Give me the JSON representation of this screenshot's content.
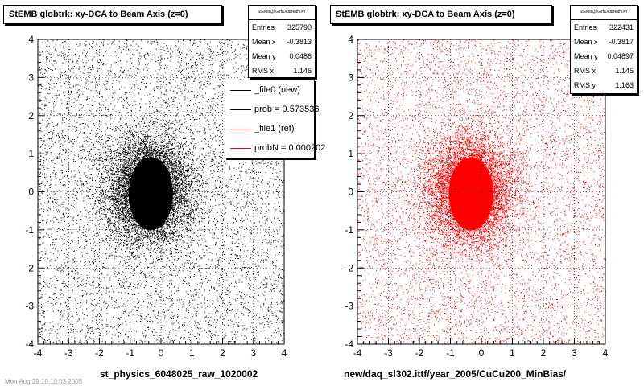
{
  "chart_data": [
    {
      "type": "scatter",
      "title": "StEMB globtrk: xy-DCA to Beam Axis (z=0)",
      "xlabel": "st_physics_6048025_raw_1020002",
      "ylabel": "",
      "xlim": [
        -4,
        4
      ],
      "ylim": [
        -4,
        4
      ],
      "x_ticks": [
        "-4",
        "-3",
        "-2",
        "-1",
        "0",
        "1",
        "2",
        "3",
        "4"
      ],
      "y_ticks": [
        "-4",
        "-3",
        "-2",
        "-1",
        "0",
        "1",
        "2",
        "3",
        "4"
      ],
      "grid": true,
      "point_color": "#000000",
      "distribution": {
        "center_x": -0.3813,
        "center_y": 0.0486,
        "rms_x": 1.146
      },
      "stats": {
        "name": "StEMBQaGlrkDcaBeamXY",
        "rows": [
          {
            "label": "Entries",
            "value": "325790"
          },
          {
            "label": "Mean x",
            "value": "-0.3813"
          },
          {
            "label": "Mean y",
            "value": "0.0486"
          },
          {
            "label": "RMS x",
            "value": "1.146"
          }
        ]
      },
      "legend": {
        "position": "top-right",
        "entries": [
          {
            "label": "_file0 (new)",
            "color": "#000000"
          },
          {
            "label": "prob = 0.573536",
            "color": "#000000"
          },
          {
            "label": "_file1 (ref)",
            "color": "#ff0000"
          },
          {
            "label": "probN = 0.000202",
            "color": "#ff0000"
          }
        ]
      }
    },
    {
      "type": "scatter",
      "title": "StEMB globtrk: xy-DCA to Beam Axis (z=0)",
      "xlabel": "new/daq_sl302.ittf/year_2005/CuCu200_MinBias/",
      "ylabel": "",
      "xlim": [
        -4,
        4
      ],
      "ylim": [
        -4,
        4
      ],
      "x_ticks": [
        "-4",
        "-3",
        "-2",
        "-1",
        "0",
        "1",
        "2",
        "3",
        "4"
      ],
      "y_ticks": [
        "-4",
        "-3",
        "-2",
        "-1",
        "0",
        "1",
        "2",
        "3",
        "4"
      ],
      "grid": true,
      "point_color": "#ff0000",
      "distribution": {
        "center_x": -0.3817,
        "center_y": 0.04897,
        "rms_x": 1.145,
        "rms_y": 1.163
      },
      "stats": {
        "name": "StEMBQaGlrkDcaBeamXY",
        "rows": [
          {
            "label": "Entries",
            "value": "322431"
          },
          {
            "label": "Mean x",
            "value": "-0.3817"
          },
          {
            "label": "Mean y",
            "value": "0.04897"
          },
          {
            "label": "RMS x",
            "value": "1.145"
          },
          {
            "label": "RMS y",
            "value": "1.163"
          }
        ]
      }
    }
  ],
  "footer": "Mon Aug 29 10:10:03 2005"
}
